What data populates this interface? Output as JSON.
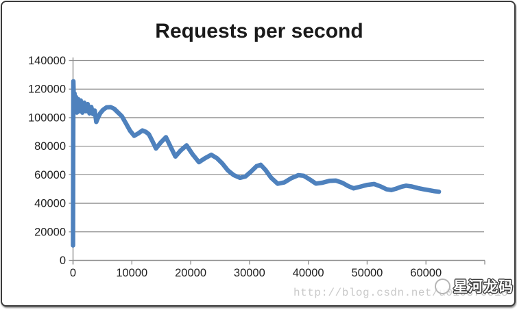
{
  "chart_data": {
    "type": "line",
    "title": "Requests per second",
    "xlabel": "",
    "ylabel": "",
    "xlim": [
      0,
      70000
    ],
    "ylim": [
      0,
      140000
    ],
    "grid": "horizontal",
    "legend": "none",
    "x_tick_values": [
      0,
      10000,
      20000,
      30000,
      40000,
      50000,
      60000,
      70000
    ],
    "x_tick_labels": [
      "0",
      "10000",
      "20000",
      "30000",
      "40000",
      "50000",
      "60000",
      ""
    ],
    "y_tick_values": [
      0,
      20000,
      40000,
      60000,
      80000,
      100000,
      120000,
      140000
    ],
    "y_tick_labels": [
      "0",
      "20000",
      "40000",
      "60000",
      "80000",
      "100000",
      "120000",
      "140000"
    ],
    "series": [
      {
        "color": "#4E81BD",
        "points": [
          [
            0,
            10500
          ],
          [
            60,
            125500
          ],
          [
            150,
            109500
          ],
          [
            260,
            117000
          ],
          [
            360,
            104500
          ],
          [
            500,
            114500
          ],
          [
            650,
            103500
          ],
          [
            850,
            113000
          ],
          [
            1050,
            104500
          ],
          [
            1300,
            112000
          ],
          [
            1600,
            103500
          ],
          [
            1900,
            110500
          ],
          [
            2200,
            104500
          ],
          [
            2500,
            109500
          ],
          [
            2800,
            103000
          ],
          [
            3100,
            107500
          ],
          [
            3400,
            102500
          ],
          [
            3700,
            105000
          ],
          [
            3950,
            97000
          ],
          [
            4200,
            99500
          ],
          [
            4600,
            103000
          ],
          [
            5100,
            105500
          ],
          [
            5700,
            107200
          ],
          [
            6400,
            107400
          ],
          [
            7000,
            106200
          ],
          [
            7600,
            103800
          ],
          [
            8300,
            101000
          ],
          [
            9000,
            96000
          ],
          [
            9700,
            90800
          ],
          [
            10400,
            87300
          ],
          [
            11100,
            89000
          ],
          [
            11800,
            91000
          ],
          [
            12400,
            90000
          ],
          [
            12900,
            88300
          ],
          [
            13500,
            83500
          ],
          [
            14100,
            78400
          ],
          [
            14900,
            82500
          ],
          [
            15800,
            86300
          ],
          [
            16600,
            79500
          ],
          [
            17400,
            72800
          ],
          [
            18300,
            77000
          ],
          [
            19300,
            80600
          ],
          [
            20300,
            74500
          ],
          [
            21400,
            68800
          ],
          [
            22400,
            71500
          ],
          [
            23500,
            74000
          ],
          [
            24500,
            71500
          ],
          [
            25400,
            67800
          ],
          [
            26300,
            63200
          ],
          [
            27300,
            59800
          ],
          [
            28400,
            57800
          ],
          [
            29300,
            58800
          ],
          [
            30200,
            62000
          ],
          [
            31200,
            66000
          ],
          [
            31900,
            67000
          ],
          [
            32700,
            63500
          ],
          [
            33700,
            57800
          ],
          [
            34800,
            53700
          ],
          [
            35900,
            54600
          ],
          [
            37100,
            57600
          ],
          [
            38300,
            59700
          ],
          [
            39200,
            59300
          ],
          [
            40200,
            56800
          ],
          [
            41300,
            53800
          ],
          [
            42400,
            54400
          ],
          [
            43600,
            55700
          ],
          [
            44700,
            55900
          ],
          [
            45800,
            54300
          ],
          [
            46800,
            52000
          ],
          [
            47700,
            50500
          ],
          [
            48800,
            51600
          ],
          [
            50000,
            52900
          ],
          [
            51200,
            53500
          ],
          [
            52300,
            51800
          ],
          [
            53300,
            49800
          ],
          [
            54100,
            49300
          ],
          [
            54900,
            50200
          ],
          [
            55800,
            51600
          ],
          [
            56600,
            52300
          ],
          [
            57600,
            51800
          ],
          [
            58600,
            50700
          ],
          [
            59600,
            49800
          ],
          [
            60600,
            49100
          ],
          [
            61400,
            48500
          ],
          [
            62200,
            48100
          ]
        ]
      }
    ]
  },
  "colors": {
    "line": "#4E81BD",
    "grid": "#8F8F8F",
    "axis": "#8F8F8F",
    "text": "#1F1F1F",
    "frame_border": "#3B3B3B",
    "watermark_url_text": "#C9C9C9"
  },
  "watermark": {
    "url_text": "http://blog.csdn.net/u010870518",
    "logo_text": "星河龙码",
    "logo_icon": "circle-badge-icon"
  }
}
